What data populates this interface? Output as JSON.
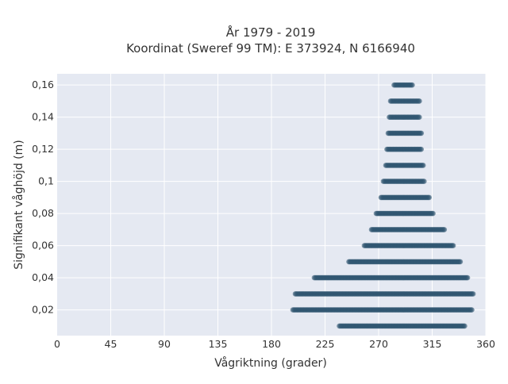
{
  "chart_data": {
    "type": "scatter",
    "title_line1": "År 1979 - 2019",
    "title_line2": "Koordinat (Sweref 99 TM): E 373924, N 6166940",
    "xlabel": "Vågriktning (grader)",
    "ylabel": "Signifikant våghöjd (m)",
    "xlim": [
      0,
      360
    ],
    "ylim": [
      0.004,
      0.167
    ],
    "x_ticks": [
      0,
      45,
      90,
      135,
      180,
      225,
      270,
      315,
      360
    ],
    "x_tick_labels": [
      "0",
      "45",
      "90",
      "135",
      "180",
      "225",
      "270",
      "315",
      "360"
    ],
    "y_ticks": [
      0.02,
      0.04,
      0.06,
      0.08,
      0.1,
      0.12,
      0.14,
      0.16
    ],
    "y_tick_labels": [
      "0,02",
      "0,04",
      "0,06",
      "0,08",
      "0,1",
      "0,12",
      "0,14",
      "0,16"
    ],
    "grid": true,
    "background_color": "#e5e9f2",
    "marker_color": "#2e5570",
    "series": [
      {
        "points_summary": "dense bands of points at discrete wave heights; x-range per band",
        "bands": [
          {
            "y": 0.01,
            "x_min": 237,
            "x_max": 343
          },
          {
            "y": 0.02,
            "x_min": 198,
            "x_max": 349
          },
          {
            "y": 0.03,
            "x_min": 200,
            "x_max": 350
          },
          {
            "y": 0.04,
            "x_min": 216,
            "x_max": 345
          },
          {
            "y": 0.05,
            "x_min": 245,
            "x_max": 339
          },
          {
            "y": 0.06,
            "x_min": 258,
            "x_max": 333
          },
          {
            "y": 0.07,
            "x_min": 264,
            "x_max": 326
          },
          {
            "y": 0.08,
            "x_min": 268,
            "x_max": 316
          },
          {
            "y": 0.09,
            "x_min": 272,
            "x_max": 313
          },
          {
            "y": 0.1,
            "x_min": 274,
            "x_max": 309
          },
          {
            "y": 0.11,
            "x_min": 276,
            "x_max": 308
          },
          {
            "y": 0.12,
            "x_min": 277,
            "x_max": 306
          },
          {
            "y": 0.13,
            "x_min": 278,
            "x_max": 306
          },
          {
            "y": 0.14,
            "x_min": 279,
            "x_max": 305
          },
          {
            "y": 0.15,
            "x_min": 280,
            "x_max": 305
          },
          {
            "y": 0.16,
            "x_min": 283,
            "x_max": 299
          }
        ]
      }
    ]
  }
}
